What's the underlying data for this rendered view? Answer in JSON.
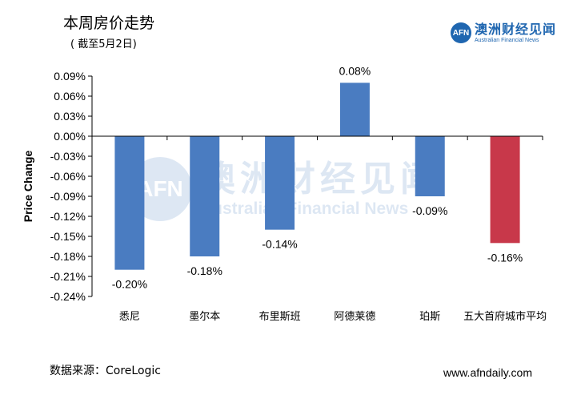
{
  "header": {
    "title": "本周房价走势",
    "subtitle": "( 截至5月2日)"
  },
  "brand": {
    "logo_mark": "AFN",
    "logo_cn": "澳洲财经见闻",
    "logo_en": "Australian Financial News"
  },
  "watermark": {
    "mark": "AFN",
    "cn": "澳洲财经见闻",
    "en": "Australian Financial News"
  },
  "footer": {
    "source": "数据来源：CoreLogic",
    "site": "www.afndaily.com"
  },
  "colors": {
    "primary_bar": "#4a7cc1",
    "highlight_bar": "#c8384a",
    "axis": "#000000"
  },
  "chart_data": {
    "type": "bar",
    "title": "本周房价走势",
    "subtitle": "( 截至5月2日)",
    "xlabel": "",
    "ylabel": "Price Change",
    "ylim": [
      -0.24,
      0.09
    ],
    "yticks": [
      "0.09%",
      "0.06%",
      "0.03%",
      "0.00%",
      "-0.03%",
      "-0.06%",
      "-0.09%",
      "-0.12%",
      "-0.15%",
      "-0.18%",
      "-0.21%",
      "-0.24%"
    ],
    "ytick_values": [
      0.09,
      0.06,
      0.03,
      0.0,
      -0.03,
      -0.06,
      -0.09,
      -0.12,
      -0.15,
      -0.18,
      -0.21,
      -0.24
    ],
    "categories": [
      "悉尼",
      "墨尔本",
      "布里斯班",
      "阿德莱德",
      "珀斯",
      "五大首府城市平均"
    ],
    "values": [
      -0.2,
      -0.18,
      -0.14,
      0.08,
      -0.09,
      -0.16
    ],
    "data_labels": [
      "-0.20%",
      "-0.18%",
      "-0.14%",
      "0.08%",
      "-0.09%",
      "-0.16%"
    ],
    "highlight_index": 5,
    "grid": false,
    "legend": "none"
  }
}
